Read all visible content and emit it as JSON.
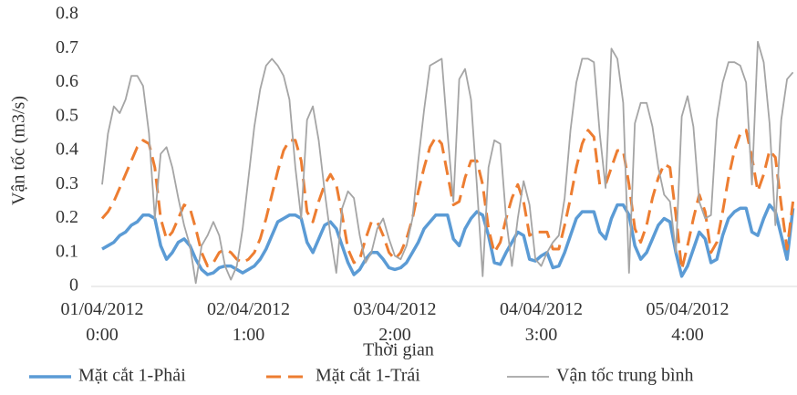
{
  "chart_data": {
    "type": "line",
    "y_label": "Vận tốc (m3/s)",
    "x_label": "Thời gian",
    "categories": [
      "01/04/2012 0:00",
      null,
      null,
      null,
      null,
      null,
      null,
      null,
      null,
      null,
      null,
      null,
      null,
      null,
      null,
      null,
      null,
      null,
      null,
      null,
      null,
      null,
      null,
      null,
      null,
      "02/04/2012 1:00",
      null,
      null,
      null,
      null,
      null,
      null,
      null,
      null,
      null,
      null,
      null,
      null,
      null,
      null,
      null,
      null,
      null,
      null,
      null,
      null,
      null,
      null,
      null,
      null,
      "03/04/2012 2:00",
      null,
      null,
      null,
      null,
      null,
      null,
      null,
      null,
      null,
      null,
      null,
      null,
      null,
      null,
      null,
      null,
      null,
      null,
      null,
      null,
      null,
      null,
      null,
      null,
      "04/04/2012 3:00",
      null,
      null,
      null,
      null,
      null,
      null,
      null,
      null,
      null,
      null,
      null,
      null,
      null,
      null,
      null,
      null,
      null,
      null,
      null,
      null,
      null,
      null,
      null,
      null,
      "05/04/2012 4:00",
      null,
      null,
      null,
      null,
      null,
      null,
      null,
      null,
      null,
      null,
      null,
      null,
      null,
      null,
      null,
      null,
      null,
      null
    ],
    "series": [
      {
        "name": "Mặt cắt 1-Phải",
        "color": "#5b9bd5",
        "dash": false,
        "width": 3.5,
        "values": [
          0.11,
          0.12,
          0.13,
          0.15,
          0.16,
          0.18,
          0.19,
          0.21,
          0.21,
          0.2,
          0.12,
          0.08,
          0.1,
          0.13,
          0.14,
          0.12,
          0.08,
          0.05,
          0.035,
          0.04,
          0.055,
          0.06,
          0.06,
          0.05,
          0.04,
          0.05,
          0.06,
          0.08,
          0.11,
          0.15,
          0.19,
          0.2,
          0.21,
          0.21,
          0.2,
          0.13,
          0.1,
          0.14,
          0.18,
          0.19,
          0.17,
          0.12,
          0.07,
          0.035,
          0.05,
          0.08,
          0.1,
          0.1,
          0.08,
          0.055,
          0.05,
          0.055,
          0.07,
          0.1,
          0.13,
          0.17,
          0.19,
          0.21,
          0.21,
          0.21,
          0.14,
          0.12,
          0.17,
          0.2,
          0.22,
          0.21,
          0.15,
          0.07,
          0.065,
          0.1,
          0.13,
          0.16,
          0.15,
          0.08,
          0.075,
          0.09,
          0.1,
          0.055,
          0.06,
          0.1,
          0.15,
          0.2,
          0.22,
          0.22,
          0.22,
          0.16,
          0.14,
          0.2,
          0.24,
          0.24,
          0.21,
          0.12,
          0.08,
          0.1,
          0.14,
          0.18,
          0.2,
          0.19,
          0.1,
          0.03,
          0.06,
          0.11,
          0.16,
          0.14,
          0.07,
          0.08,
          0.15,
          0.2,
          0.22,
          0.23,
          0.23,
          0.16,
          0.15,
          0.2,
          0.24,
          0.22,
          0.15,
          0.08,
          0.23
        ]
      },
      {
        "name": "Mặt cắt 1-Trái",
        "color": "#ed7d31",
        "dash": true,
        "width": 3,
        "values": [
          0.2,
          0.22,
          0.25,
          0.29,
          0.33,
          0.37,
          0.41,
          0.43,
          0.42,
          0.35,
          0.2,
          0.14,
          0.16,
          0.2,
          0.24,
          0.23,
          0.17,
          0.1,
          0.06,
          0.07,
          0.1,
          0.11,
          0.1,
          0.08,
          0.07,
          0.08,
          0.1,
          0.14,
          0.2,
          0.27,
          0.34,
          0.4,
          0.43,
          0.43,
          0.37,
          0.22,
          0.19,
          0.25,
          0.3,
          0.33,
          0.3,
          0.21,
          0.11,
          0.07,
          0.08,
          0.14,
          0.19,
          0.19,
          0.15,
          0.1,
          0.08,
          0.1,
          0.14,
          0.2,
          0.28,
          0.35,
          0.41,
          0.44,
          0.42,
          0.33,
          0.24,
          0.25,
          0.32,
          0.37,
          0.37,
          0.3,
          0.17,
          0.1,
          0.13,
          0.2,
          0.26,
          0.3,
          0.25,
          0.15,
          0.16,
          0.16,
          0.16,
          0.11,
          0.11,
          0.18,
          0.26,
          0.35,
          0.42,
          0.46,
          0.44,
          0.3,
          0.3,
          0.35,
          0.4,
          0.4,
          0.3,
          0.17,
          0.13,
          0.18,
          0.26,
          0.32,
          0.36,
          0.35,
          0.21,
          0.05,
          0.12,
          0.2,
          0.27,
          0.22,
          0.1,
          0.13,
          0.22,
          0.32,
          0.4,
          0.45,
          0.46,
          0.38,
          0.28,
          0.33,
          0.4,
          0.38,
          0.24,
          0.11,
          0.25
        ]
      },
      {
        "name": "Vận tốc trung bình",
        "color": "#a5a5a5",
        "dash": false,
        "width": 1.8,
        "values": [
          0.3,
          0.45,
          0.53,
          0.51,
          0.55,
          0.62,
          0.62,
          0.59,
          0.45,
          0.2,
          0.39,
          0.41,
          0.35,
          0.26,
          0.18,
          0.12,
          0.01,
          0.12,
          0.15,
          0.19,
          0.15,
          0.06,
          0.02,
          0.06,
          0.17,
          0.32,
          0.47,
          0.58,
          0.65,
          0.67,
          0.65,
          0.62,
          0.55,
          0.35,
          0.2,
          0.49,
          0.53,
          0.43,
          0.28,
          0.15,
          0.04,
          0.23,
          0.28,
          0.26,
          0.15,
          0.07,
          0.1,
          0.17,
          0.2,
          0.14,
          0.09,
          0.08,
          0.12,
          0.2,
          0.37,
          0.52,
          0.65,
          0.66,
          0.67,
          0.45,
          0.25,
          0.61,
          0.64,
          0.55,
          0.3,
          0.03,
          0.35,
          0.43,
          0.42,
          0.2,
          0.06,
          0.2,
          0.31,
          0.24,
          0.08,
          0.06,
          0.1,
          0.13,
          0.15,
          0.26,
          0.46,
          0.6,
          0.67,
          0.67,
          0.66,
          0.45,
          0.29,
          0.7,
          0.67,
          0.54,
          0.04,
          0.48,
          0.54,
          0.54,
          0.47,
          0.35,
          0.27,
          0.25,
          0.1,
          0.5,
          0.56,
          0.47,
          0.25,
          0.2,
          0.21,
          0.49,
          0.6,
          0.66,
          0.66,
          0.65,
          0.6,
          0.3,
          0.72,
          0.66,
          0.48,
          0.18,
          0.49,
          0.61,
          0.63
        ]
      }
    ],
    "ylim": [
      0,
      0.8
    ],
    "yticks": [
      0,
      0.1,
      0.2,
      0.3,
      0.4,
      0.5,
      0.6,
      0.7,
      0.8
    ],
    "grid": false
  }
}
